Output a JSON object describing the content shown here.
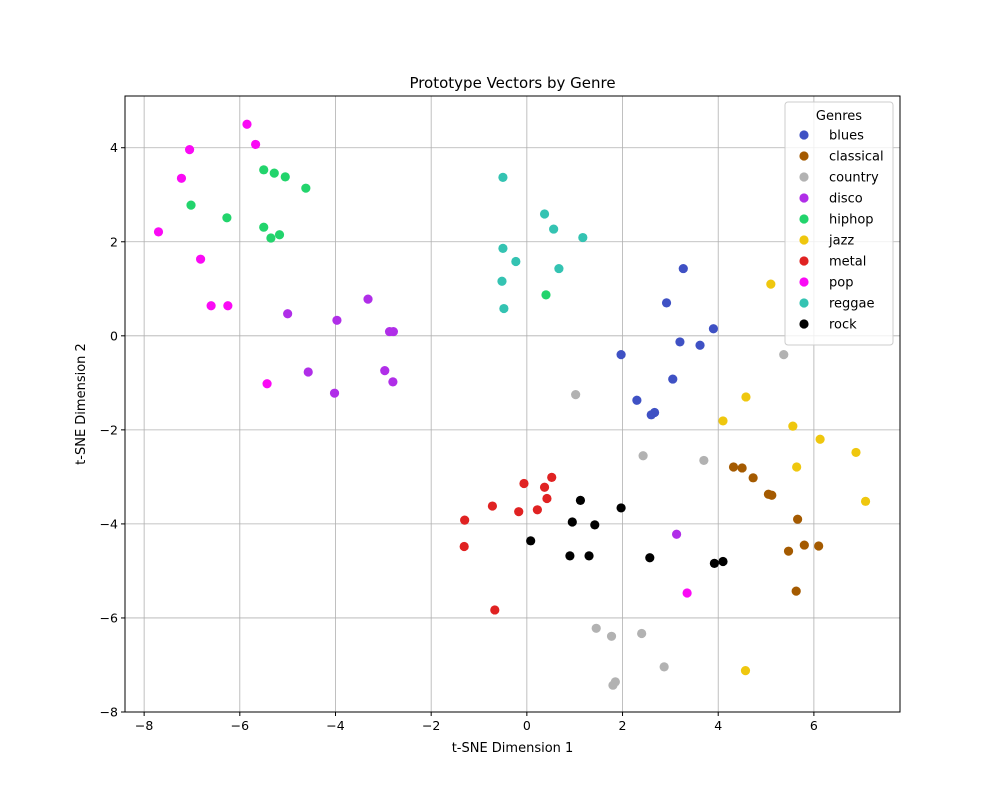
{
  "chart_data": {
    "type": "scatter",
    "title": "Prototype Vectors by Genre",
    "xlabel": "t-SNE Dimension 1",
    "ylabel": "t-SNE Dimension 2",
    "xlim": [
      -8.4,
      7.8
    ],
    "ylim": [
      -8.0,
      5.1
    ],
    "xticks": [
      -8,
      -6,
      -4,
      -2,
      0,
      2,
      4,
      6
    ],
    "yticks": [
      -8,
      -6,
      -4,
      -2,
      0,
      2,
      4
    ],
    "xtick_labels": [
      "−8",
      "−6",
      "−4",
      "−2",
      "0",
      "2",
      "4",
      "6"
    ],
    "ytick_labels": [
      "−8",
      "−6",
      "−4",
      "−2",
      "0",
      "2",
      "4"
    ],
    "grid": true,
    "legend_title": "Genres",
    "legend_position": "top-right",
    "series": [
      {
        "name": "blues",
        "color": "#3f51c4",
        "points": [
          [
            3.27,
            1.43
          ],
          [
            2.92,
            0.7
          ],
          [
            3.9,
            0.15
          ],
          [
            3.2,
            -0.13
          ],
          [
            3.62,
            -0.2
          ],
          [
            1.97,
            -0.4
          ],
          [
            3.05,
            -0.92
          ],
          [
            2.3,
            -1.37
          ],
          [
            2.67,
            -1.63
          ],
          [
            2.6,
            -1.68
          ]
        ]
      },
      {
        "name": "classical",
        "color": "#a45a00",
        "points": [
          [
            4.32,
            -2.79
          ],
          [
            4.5,
            -2.81
          ],
          [
            4.73,
            -3.02
          ],
          [
            5.05,
            -3.37
          ],
          [
            5.12,
            -3.39
          ],
          [
            5.66,
            -3.9
          ],
          [
            5.8,
            -4.45
          ],
          [
            6.1,
            -4.47
          ],
          [
            5.47,
            -4.58
          ],
          [
            5.63,
            -5.43
          ]
        ]
      },
      {
        "name": "country",
        "color": "#b2b2b2",
        "points": [
          [
            5.37,
            -0.4
          ],
          [
            1.02,
            -1.25
          ],
          [
            2.43,
            -2.55
          ],
          [
            3.7,
            -2.65
          ],
          [
            1.45,
            -6.22
          ],
          [
            1.77,
            -6.39
          ],
          [
            2.4,
            -6.33
          ],
          [
            2.87,
            -7.04
          ],
          [
            1.85,
            -7.36
          ],
          [
            1.8,
            -7.43
          ]
        ]
      },
      {
        "name": "disco",
        "color": "#b02ee8",
        "points": [
          [
            -3.32,
            0.78
          ],
          [
            -5.0,
            0.47
          ],
          [
            -3.97,
            0.33
          ],
          [
            -2.87,
            0.09
          ],
          [
            -2.79,
            0.09
          ],
          [
            -4.57,
            -0.77
          ],
          [
            -2.97,
            -0.74
          ],
          [
            -2.8,
            -0.98
          ],
          [
            -4.02,
            -1.22
          ],
          [
            3.13,
            -4.22
          ]
        ]
      },
      {
        "name": "hiphop",
        "color": "#22d46c",
        "points": [
          [
            -5.5,
            3.53
          ],
          [
            -5.28,
            3.46
          ],
          [
            -5.05,
            3.38
          ],
          [
            -4.62,
            3.14
          ],
          [
            -7.02,
            2.78
          ],
          [
            -6.27,
            2.51
          ],
          [
            -5.5,
            2.31
          ],
          [
            -5.17,
            2.15
          ],
          [
            -5.35,
            2.08
          ],
          [
            0.4,
            0.87
          ]
        ]
      },
      {
        "name": "jazz",
        "color": "#efc70e",
        "points": [
          [
            5.1,
            1.1
          ],
          [
            4.58,
            -1.3
          ],
          [
            4.1,
            -1.81
          ],
          [
            5.56,
            -1.92
          ],
          [
            6.13,
            -2.2
          ],
          [
            6.88,
            -2.48
          ],
          [
            5.64,
            -2.79
          ],
          [
            7.08,
            -3.52
          ],
          [
            4.57,
            -7.12
          ]
        ]
      },
      {
        "name": "metal",
        "color": "#e02222",
        "points": [
          [
            -0.06,
            -3.14
          ],
          [
            0.52,
            -3.01
          ],
          [
            0.37,
            -3.22
          ],
          [
            0.42,
            -3.46
          ],
          [
            -0.72,
            -3.62
          ],
          [
            -0.17,
            -3.74
          ],
          [
            0.22,
            -3.7
          ],
          [
            -1.3,
            -3.92
          ],
          [
            -1.31,
            -4.48
          ],
          [
            -0.67,
            -5.83
          ]
        ]
      },
      {
        "name": "pop",
        "color": "#fa0af5",
        "points": [
          [
            -5.85,
            4.5
          ],
          [
            -5.67,
            4.07
          ],
          [
            -7.05,
            3.96
          ],
          [
            -7.22,
            3.35
          ],
          [
            -7.7,
            2.21
          ],
          [
            -6.82,
            1.63
          ],
          [
            -6.6,
            0.64
          ],
          [
            -6.25,
            0.64
          ],
          [
            -5.43,
            -1.02
          ],
          [
            3.35,
            -5.47
          ]
        ]
      },
      {
        "name": "reggae",
        "color": "#34c3b2",
        "points": [
          [
            -0.5,
            3.37
          ],
          [
            0.37,
            2.59
          ],
          [
            0.56,
            2.27
          ],
          [
            1.17,
            2.09
          ],
          [
            -0.5,
            1.86
          ],
          [
            -0.23,
            1.58
          ],
          [
            0.67,
            1.43
          ],
          [
            -0.52,
            1.16
          ],
          [
            -0.48,
            0.58
          ]
        ]
      },
      {
        "name": "rock",
        "color": "#000000",
        "points": [
          [
            1.12,
            -3.5
          ],
          [
            1.97,
            -3.66
          ],
          [
            0.95,
            -3.96
          ],
          [
            1.42,
            -4.02
          ],
          [
            0.08,
            -4.36
          ],
          [
            0.9,
            -4.68
          ],
          [
            1.3,
            -4.68
          ],
          [
            2.57,
            -4.72
          ],
          [
            4.1,
            -4.8
          ],
          [
            3.92,
            -4.84
          ]
        ]
      }
    ]
  }
}
